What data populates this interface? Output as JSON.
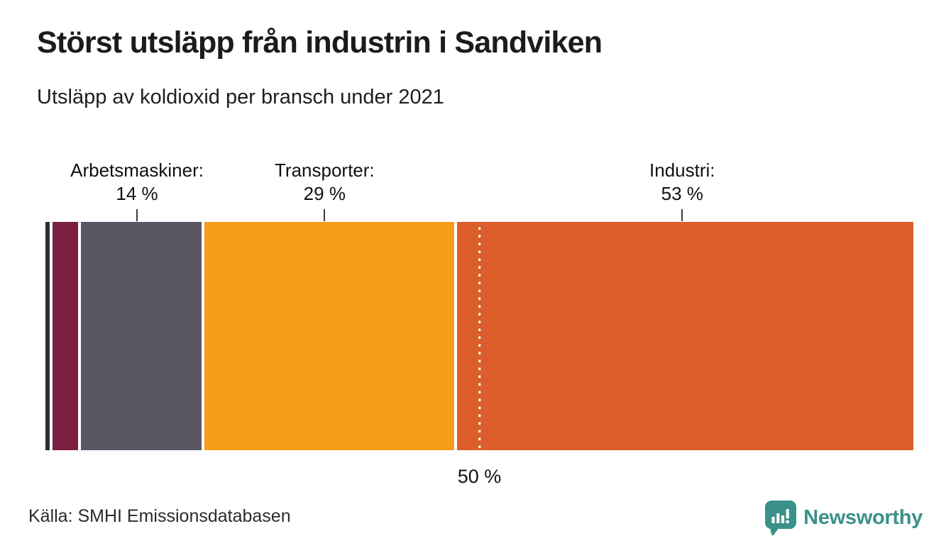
{
  "header": {
    "title": "Störst utsläpp från industrin i Sandviken",
    "subtitle": "Utsläpp av koldioxid per bransch under 2021"
  },
  "chart_data": {
    "type": "bar",
    "variant": "stacked-horizontal-percent",
    "title": "Störst utsläpp från industrin i Sandviken",
    "subtitle": "Utsläpp av koldioxid per bransch under 2021",
    "unit": "%",
    "axis": {
      "min": 0,
      "max": 100,
      "grid": false
    },
    "segments": [
      {
        "name": "unlabeled-segment-1",
        "value": 0.5,
        "color": "#2e2d39",
        "labeled": false,
        "label_line1": "",
        "label_line2": ""
      },
      {
        "name": "unlabeled-segment-2",
        "value": 3,
        "color": "#7b2041",
        "labeled": false,
        "label_line1": "",
        "label_line2": ""
      },
      {
        "name": "Arbetsmaskiner",
        "value": 14,
        "color": "#5a5663",
        "labeled": true,
        "label_line1": "Arbetsmaskiner:",
        "label_line2": "14 %"
      },
      {
        "name": "Transporter",
        "value": 29,
        "color": "#f79d17",
        "labeled": true,
        "label_line1": "Transporter:",
        "label_line2": "29 %"
      },
      {
        "name": "Industri",
        "value": 53,
        "color": "#dd5e2b",
        "labeled": true,
        "label_line1": "Industri:",
        "label_line2": "53 %"
      }
    ],
    "reference_line": {
      "value": 50,
      "label": "50 %",
      "style": "dotted-white"
    },
    "legend_position": "labels-above-bar"
  },
  "footer": {
    "source": "Källa: SMHI Emissionsdatabasen",
    "brand": {
      "name": "Newsworthy",
      "color": "#3a9189",
      "icon": "newsworthy-speech-bubble-chart-icon"
    }
  }
}
